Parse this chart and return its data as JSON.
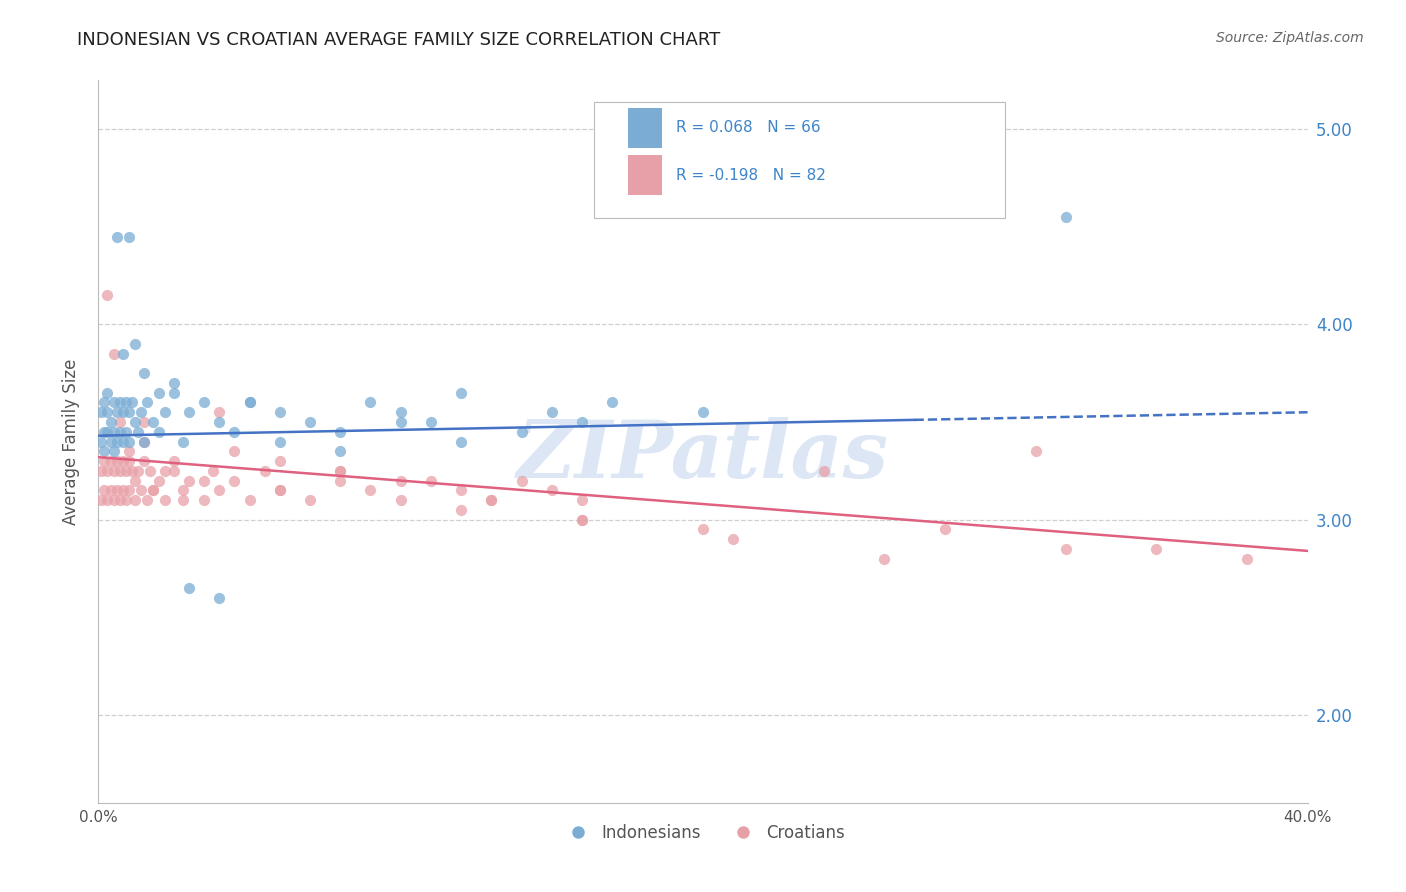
{
  "title": "INDONESIAN VS CROATIAN AVERAGE FAMILY SIZE CORRELATION CHART",
  "source_text": "Source: ZipAtlas.com",
  "ylabel": "Average Family Size",
  "xlim": [
    0.0,
    0.4
  ],
  "ylim": [
    1.55,
    5.25
  ],
  "yticks": [
    2.0,
    3.0,
    4.0,
    5.0
  ],
  "legend1_text": "R = 0.068   N = 66",
  "legend2_text": "R = -0.198   N = 82",
  "legend_label1": "Indonesians",
  "legend_label2": "Croatians",
  "blue_color": "#7badd4",
  "pink_color": "#e8a0a8",
  "line_blue": "#4472c4",
  "line_pink": "#e06080",
  "text_blue": "#3d85c8",
  "grid_color": "#d0d0d0",
  "background_color": "#ffffff",
  "watermark_color": "#dce6f5",
  "indonesian_x": [
    0.001,
    0.001,
    0.002,
    0.002,
    0.002,
    0.003,
    0.003,
    0.003,
    0.004,
    0.004,
    0.005,
    0.005,
    0.005,
    0.006,
    0.006,
    0.007,
    0.007,
    0.008,
    0.008,
    0.009,
    0.009,
    0.01,
    0.01,
    0.011,
    0.012,
    0.013,
    0.014,
    0.015,
    0.016,
    0.018,
    0.02,
    0.022,
    0.025,
    0.028,
    0.03,
    0.035,
    0.04,
    0.045,
    0.05,
    0.06,
    0.07,
    0.08,
    0.09,
    0.1,
    0.11,
    0.12,
    0.14,
    0.15,
    0.16,
    0.17,
    0.006,
    0.008,
    0.01,
    0.012,
    0.015,
    0.02,
    0.025,
    0.03,
    0.04,
    0.05,
    0.06,
    0.08,
    0.1,
    0.12,
    0.2,
    0.32
  ],
  "indonesian_y": [
    3.55,
    3.4,
    3.6,
    3.45,
    3.35,
    3.55,
    3.45,
    3.65,
    3.5,
    3.4,
    3.6,
    3.45,
    3.35,
    3.55,
    3.4,
    3.6,
    3.45,
    3.55,
    3.4,
    3.6,
    3.45,
    3.55,
    3.4,
    3.6,
    3.5,
    3.45,
    3.55,
    3.4,
    3.6,
    3.5,
    3.45,
    3.55,
    3.65,
    3.4,
    3.55,
    3.6,
    3.5,
    3.45,
    3.6,
    3.55,
    3.5,
    3.45,
    3.6,
    3.55,
    3.5,
    3.65,
    3.45,
    3.55,
    3.5,
    3.6,
    4.45,
    3.85,
    4.45,
    3.9,
    3.75,
    3.65,
    3.7,
    2.65,
    2.6,
    3.6,
    3.4,
    3.35,
    3.5,
    3.4,
    3.55,
    4.55
  ],
  "croatian_x": [
    0.001,
    0.001,
    0.002,
    0.002,
    0.003,
    0.003,
    0.004,
    0.004,
    0.005,
    0.005,
    0.006,
    0.006,
    0.007,
    0.007,
    0.008,
    0.008,
    0.009,
    0.009,
    0.01,
    0.01,
    0.011,
    0.012,
    0.013,
    0.014,
    0.015,
    0.016,
    0.017,
    0.018,
    0.02,
    0.022,
    0.025,
    0.028,
    0.03,
    0.035,
    0.038,
    0.04,
    0.045,
    0.05,
    0.055,
    0.06,
    0.07,
    0.08,
    0.09,
    0.1,
    0.11,
    0.12,
    0.13,
    0.14,
    0.15,
    0.16,
    0.003,
    0.005,
    0.007,
    0.01,
    0.012,
    0.015,
    0.018,
    0.022,
    0.028,
    0.035,
    0.045,
    0.06,
    0.08,
    0.1,
    0.13,
    0.16,
    0.2,
    0.24,
    0.28,
    0.31,
    0.35,
    0.38,
    0.015,
    0.025,
    0.04,
    0.06,
    0.08,
    0.12,
    0.16,
    0.21,
    0.26,
    0.32
  ],
  "croatian_y": [
    3.25,
    3.1,
    3.3,
    3.15,
    3.25,
    3.1,
    3.3,
    3.15,
    3.25,
    3.1,
    3.3,
    3.15,
    3.25,
    3.1,
    3.3,
    3.15,
    3.25,
    3.1,
    3.3,
    3.15,
    3.25,
    3.1,
    3.25,
    3.15,
    3.3,
    3.1,
    3.25,
    3.15,
    3.2,
    3.1,
    3.25,
    3.15,
    3.2,
    3.1,
    3.25,
    3.15,
    3.2,
    3.1,
    3.25,
    3.15,
    3.1,
    3.2,
    3.15,
    3.1,
    3.2,
    3.15,
    3.1,
    3.2,
    3.15,
    3.1,
    4.15,
    3.85,
    3.5,
    3.35,
    3.2,
    3.4,
    3.15,
    3.25,
    3.1,
    3.2,
    3.35,
    3.15,
    3.25,
    3.2,
    3.1,
    3.0,
    2.95,
    3.25,
    2.95,
    3.35,
    2.85,
    2.8,
    3.5,
    3.3,
    3.55,
    3.3,
    3.25,
    3.05,
    3.0,
    2.9,
    2.8,
    2.85
  ],
  "blue_line_x0": 0.0,
  "blue_line_y0": 3.43,
  "blue_line_x1": 0.4,
  "blue_line_y1": 3.55,
  "pink_line_x0": 0.0,
  "pink_line_y0": 3.32,
  "pink_line_x1": 0.4,
  "pink_line_y1": 2.84
}
